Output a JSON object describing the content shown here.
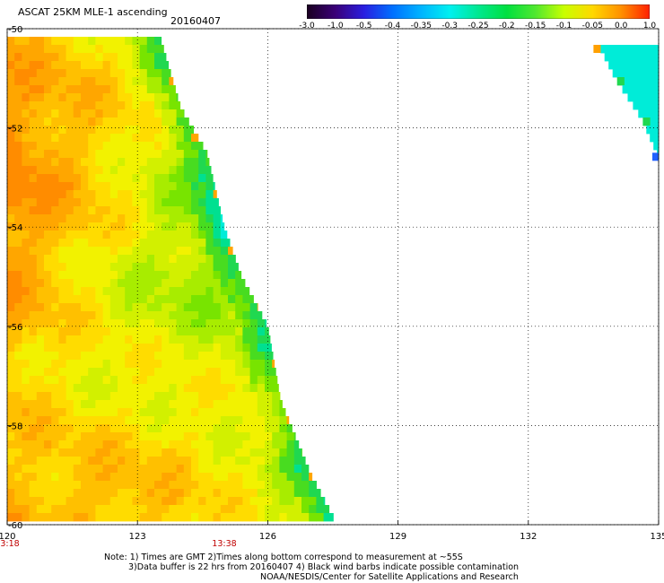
{
  "header": {
    "title": "ASCAT 25KM MLE-1 ascending",
    "date": "20160407"
  },
  "colorbar": {
    "labels": [
      "-3.0",
      "-1.0",
      "-0.5",
      "-0.4",
      "-0.35",
      "-0.3",
      "-0.25",
      "-0.2",
      "-0.15",
      "-0.1",
      "-0.05",
      "0.0",
      "1.0"
    ],
    "colors": [
      "#1a0020",
      "#3a0078",
      "#2a1ee0",
      "#0070ff",
      "#00b4ff",
      "#00f0f0",
      "#00e890",
      "#00e040",
      "#50e830",
      "#c8ff00",
      "#ffd800",
      "#ff9000",
      "#ff2000"
    ]
  },
  "chart_data": {
    "type": "heatmap",
    "x_ticks": [
      "120",
      "123",
      "126",
      "129",
      "132",
      "135"
    ],
    "y_ticks": [
      "-50",
      "-52",
      "-54",
      "-56",
      "-58",
      "-60"
    ],
    "xlim": [
      120,
      135
    ],
    "ylim": [
      -60,
      -50
    ],
    "grid": true,
    "time_labels": [
      {
        "lon": 120,
        "text": "13:18"
      },
      {
        "lon": 125,
        "text": "13:38"
      }
    ],
    "swath_main_edge": [
      {
        "lat": -50.1,
        "lon": 123.5
      },
      {
        "lat": -51.6,
        "lon": 124.0
      },
      {
        "lat": -52.5,
        "lon": 124.6
      },
      {
        "lat": -54.0,
        "lon": 125.0
      },
      {
        "lat": -55.0,
        "lon": 125.4
      },
      {
        "lat": -56.0,
        "lon": 126.0
      },
      {
        "lat": -57.5,
        "lon": 126.3
      },
      {
        "lat": -59.0,
        "lon": 127.0
      },
      {
        "lat": -60.0,
        "lon": 127.6
      }
    ],
    "swath_ne_edge": [
      {
        "lat": -50.3,
        "lon": 133.6
      },
      {
        "lat": -51.0,
        "lon": 134.0
      },
      {
        "lat": -51.8,
        "lon": 134.6
      },
      {
        "lat": -52.6,
        "lon": 135.0
      }
    ]
  },
  "notes": [
    "Note: 1) Times are GMT 2)Times along bottom correspond to measurement at ~55S",
    "3)Data buffer is 22 hrs from 20160407 4) Black wind barbs indicate possible contamination",
    "NOAA/NESDIS/Center for Satellite Applications and Research"
  ]
}
